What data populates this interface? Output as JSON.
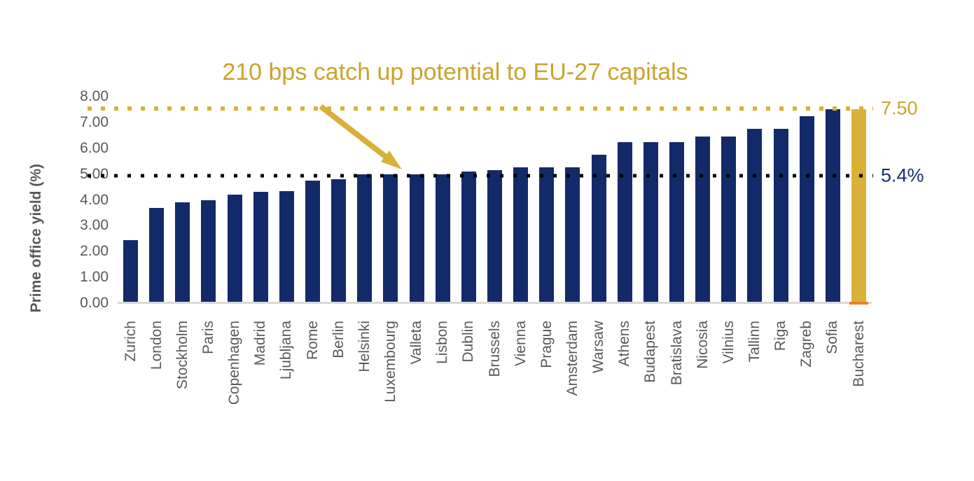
{
  "annotation": {
    "text": "210 bps catch up potential to EU-27 capitals"
  },
  "chart_data": {
    "type": "bar",
    "title": "210 bps catch up potential to EU-27 capitals",
    "xlabel": "",
    "ylabel": "Prime office yield (%)",
    "ylim": [
      0,
      8
    ],
    "grid": false,
    "legend": "none",
    "ytick_labels": [
      "8.00",
      "7.00",
      "6.00",
      "5.00",
      "4.00",
      "3.00",
      "2.00",
      "1.00",
      "0.00"
    ],
    "ytick_values": [
      8,
      7,
      6,
      5,
      4,
      3,
      2,
      1,
      0
    ],
    "categories": [
      "Zurich",
      "London",
      "Stockholm",
      "Paris",
      "Copenhagen",
      "Madrid",
      "Ljubljana",
      "Rome",
      "Berlin",
      "Helsinki",
      "Luxembourg",
      "Valleta",
      "Lisbon",
      "Dublin",
      "Brussels",
      "Vienna",
      "Prague",
      "Amsterdam",
      "Warsaw",
      "Athens",
      "Budapest",
      "Bratislava",
      "Nicosia",
      "Vilnius",
      "Tallinn",
      "Riga",
      "Zagreb",
      "Sofia",
      "Bucharest"
    ],
    "values": [
      2.45,
      3.7,
      3.9,
      4.0,
      4.2,
      4.3,
      4.35,
      4.75,
      4.8,
      5.0,
      5.0,
      5.0,
      5.0,
      5.1,
      5.15,
      5.25,
      5.25,
      5.25,
      5.75,
      6.25,
      6.25,
      6.25,
      6.45,
      6.45,
      6.75,
      6.75,
      7.25,
      7.5,
      7.5
    ],
    "highlight_category": "Bucharest",
    "reference_lines": [
      {
        "name": "top-yield-line",
        "label": "7.50",
        "value": 7.5,
        "axis_position": 7.55,
        "style": "gold"
      },
      {
        "name": "eu27-average-line",
        "label": "5.4%",
        "value": 5.4,
        "axis_position": 4.93,
        "style": "black"
      }
    ],
    "colors": {
      "bar": "#132A6A",
      "highlight_bar": "#D9B137",
      "highlight_base_tick": "#ED7D31",
      "annotation_gold": "#C9A42D",
      "axis_text": "#595959",
      "baseline": "#D9D9D9",
      "reference_black": "#000000",
      "reference_black_label": "#17306B"
    }
  }
}
